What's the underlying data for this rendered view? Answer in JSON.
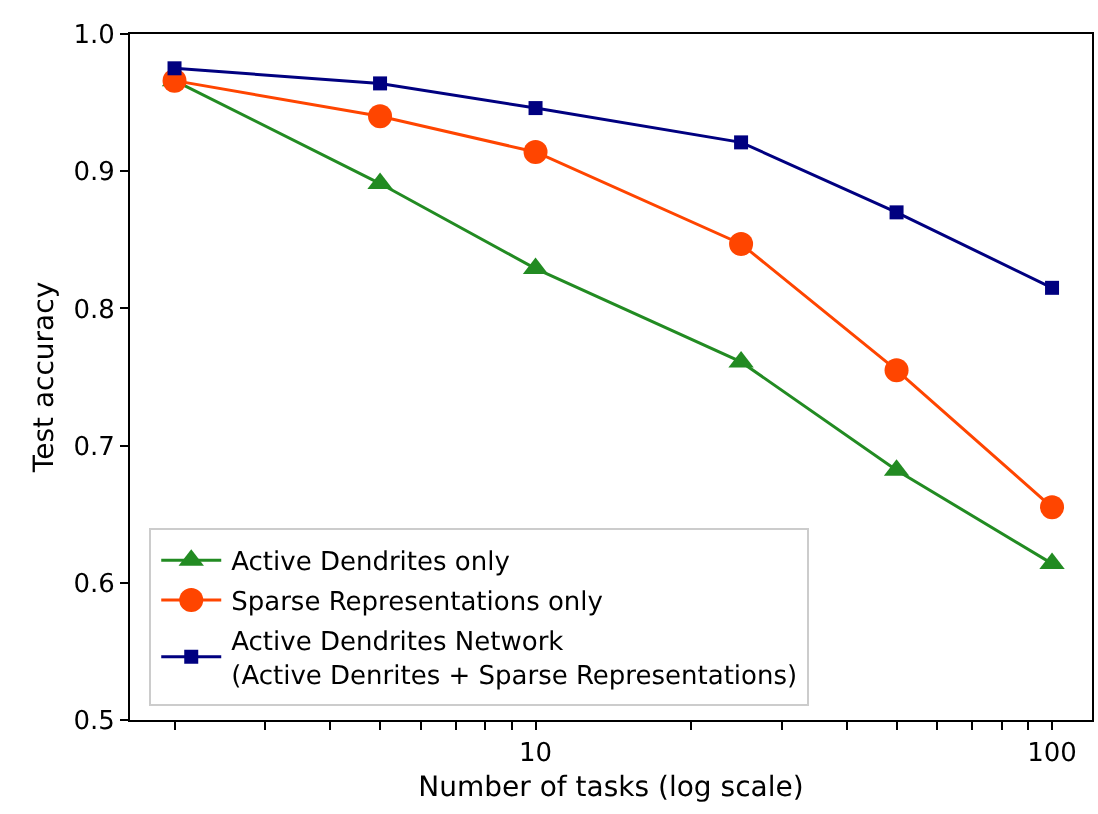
{
  "chart_data": {
    "type": "line",
    "xlabel": "Number of tasks (log scale)",
    "ylabel": "Test accuracy",
    "log": "x",
    "x": [
      2,
      5,
      10,
      25,
      50,
      100
    ],
    "series": [
      {
        "name": "Active Dendrites only",
        "color": "#228b22",
        "marker": "triangle",
        "values": [
          0.966,
          0.891,
          0.829,
          0.761,
          0.682,
          0.614
        ]
      },
      {
        "name": "Sparse Representations only",
        "color": "#ff4500",
        "marker": "circle",
        "values": [
          0.966,
          0.94,
          0.914,
          0.847,
          0.755,
          0.655
        ]
      },
      {
        "name": "Active Dendrites Network\n(Active Denrites + Sparse Representations)",
        "color": "#000080",
        "marker": "square",
        "values": [
          0.975,
          0.964,
          0.946,
          0.921,
          0.87,
          0.815
        ]
      }
    ],
    "xlim": [
      1.64,
      119.5
    ],
    "xticks": [
      {
        "value": 2,
        "label": null
      },
      {
        "value": 3,
        "label": null
      },
      {
        "value": 4,
        "label": null
      },
      {
        "value": 5,
        "label": null
      },
      {
        "value": 6,
        "label": null
      },
      {
        "value": 7,
        "label": null
      },
      {
        "value": 8,
        "label": null
      },
      {
        "value": 9,
        "label": null
      },
      10,
      {
        "value": 20,
        "label": null
      },
      {
        "value": 30,
        "label": null
      },
      {
        "value": 40,
        "label": null
      },
      {
        "value": 50,
        "label": null
      },
      {
        "value": 60,
        "label": null
      },
      {
        "value": 70,
        "label": null
      },
      {
        "value": 80,
        "label": null
      },
      {
        "value": 90,
        "label": null
      },
      100
    ],
    "ylim": [
      0.5,
      1.0
    ],
    "yticks": [
      0.5,
      0.6,
      0.7,
      0.8,
      0.9,
      {
        "value": 1,
        "label": "1.0"
      }
    ],
    "legend": "bottom left",
    "line_style": "solid"
  }
}
